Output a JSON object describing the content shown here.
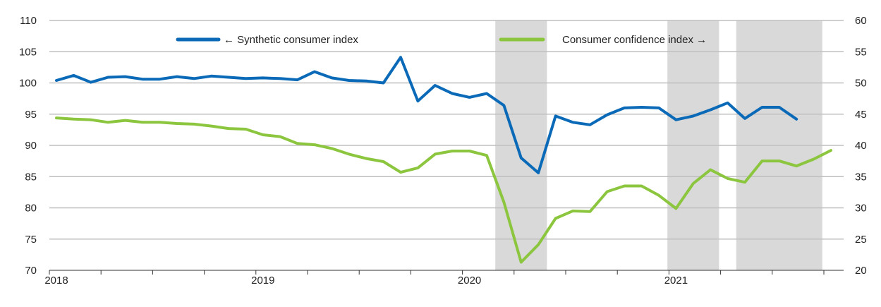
{
  "chart_data": {
    "type": "line",
    "title": "",
    "xlabel": "",
    "ylabel_left": "",
    "ylabel_right": "",
    "y_left_lim": [
      70,
      110
    ],
    "y_left_ticks": [
      "70",
      "75",
      "80",
      "85",
      "90",
      "95",
      "100",
      "105",
      "110"
    ],
    "y_right_lim": [
      20,
      60
    ],
    "y_right_ticks": [
      "20",
      "25",
      "30",
      "35",
      "40",
      "45",
      "50",
      "55",
      "60"
    ],
    "x_start": "2018-01",
    "x_tick_labels": [
      {
        "label": "2018",
        "date": "2018-01"
      },
      {
        "label": "2019",
        "date": "2019-01"
      },
      {
        "label": "2020",
        "date": "2020-01"
      },
      {
        "label": "2021",
        "date": "2021-01"
      }
    ],
    "grid": "horizontal",
    "legend_position": "top",
    "shaded_periods": [
      {
        "start": "2020-03",
        "end": "2020-05"
      },
      {
        "start": "2021-01",
        "end": "2021-03"
      },
      {
        "start": "2021-05",
        "end": "2021-09"
      }
    ],
    "shade_color": "#d9d9d9",
    "series": [
      {
        "name": "← Synthetic consumer index",
        "axis": "left",
        "color": "#0a6ab8",
        "x": [
          "2018-01",
          "2018-02",
          "2018-03",
          "2018-04",
          "2018-05",
          "2018-06",
          "2018-07",
          "2018-08",
          "2018-09",
          "2018-10",
          "2018-11",
          "2018-12",
          "2019-01",
          "2019-02",
          "2019-03",
          "2019-04",
          "2019-05",
          "2019-06",
          "2019-07",
          "2019-08",
          "2019-09",
          "2019-10",
          "2019-11",
          "2019-12",
          "2020-01",
          "2020-02",
          "2020-03",
          "2020-04",
          "2020-05",
          "2020-06",
          "2020-07",
          "2020-08",
          "2020-09",
          "2020-10",
          "2020-11",
          "2020-12",
          "2021-01",
          "2021-02",
          "2021-03",
          "2021-04",
          "2021-05",
          "2021-06",
          "2021-07",
          "2021-08"
        ],
        "values": [
          100.4,
          101.2,
          100.1,
          100.9,
          101.0,
          100.6,
          100.6,
          101.0,
          100.7,
          101.1,
          100.9,
          100.7,
          100.8,
          100.7,
          100.5,
          101.8,
          100.8,
          100.4,
          100.3,
          100.0,
          104.1,
          97.1,
          99.6,
          98.3,
          97.7,
          98.3,
          96.4,
          88.0,
          85.6,
          94.7,
          93.7,
          93.3,
          94.9,
          96.0,
          96.1,
          96.0,
          94.1,
          94.7,
          95.7,
          96.8,
          94.3,
          96.1,
          96.1,
          94.2
        ]
      },
      {
        "name": "Consumer confidence index →",
        "axis": "right",
        "color": "#8cc63f",
        "x": [
          "2018-01",
          "2018-02",
          "2018-03",
          "2018-04",
          "2018-05",
          "2018-06",
          "2018-07",
          "2018-08",
          "2018-09",
          "2018-10",
          "2018-11",
          "2018-12",
          "2019-01",
          "2019-02",
          "2019-03",
          "2019-04",
          "2019-05",
          "2019-06",
          "2019-07",
          "2019-08",
          "2019-09",
          "2019-10",
          "2019-11",
          "2019-12",
          "2020-01",
          "2020-02",
          "2020-03",
          "2020-04",
          "2020-05",
          "2020-06",
          "2020-07",
          "2020-08",
          "2020-09",
          "2020-10",
          "2020-11",
          "2020-12",
          "2021-01",
          "2021-02",
          "2021-03",
          "2021-04",
          "2021-05",
          "2021-06",
          "2021-07",
          "2021-08",
          "2021-09",
          "2021-10"
        ],
        "values": [
          44.4,
          44.2,
          44.1,
          43.7,
          44.0,
          43.7,
          43.7,
          43.5,
          43.4,
          43.1,
          42.7,
          42.6,
          41.7,
          41.4,
          40.3,
          40.1,
          39.5,
          38.6,
          37.9,
          37.4,
          35.7,
          36.4,
          38.6,
          39.1,
          39.1,
          38.4,
          30.9,
          21.3,
          24.1,
          28.3,
          29.5,
          29.4,
          32.6,
          33.5,
          33.5,
          32.0,
          29.9,
          33.9,
          36.1,
          34.7,
          34.1,
          37.5,
          37.5,
          36.7,
          37.8,
          39.2
        ]
      }
    ]
  }
}
